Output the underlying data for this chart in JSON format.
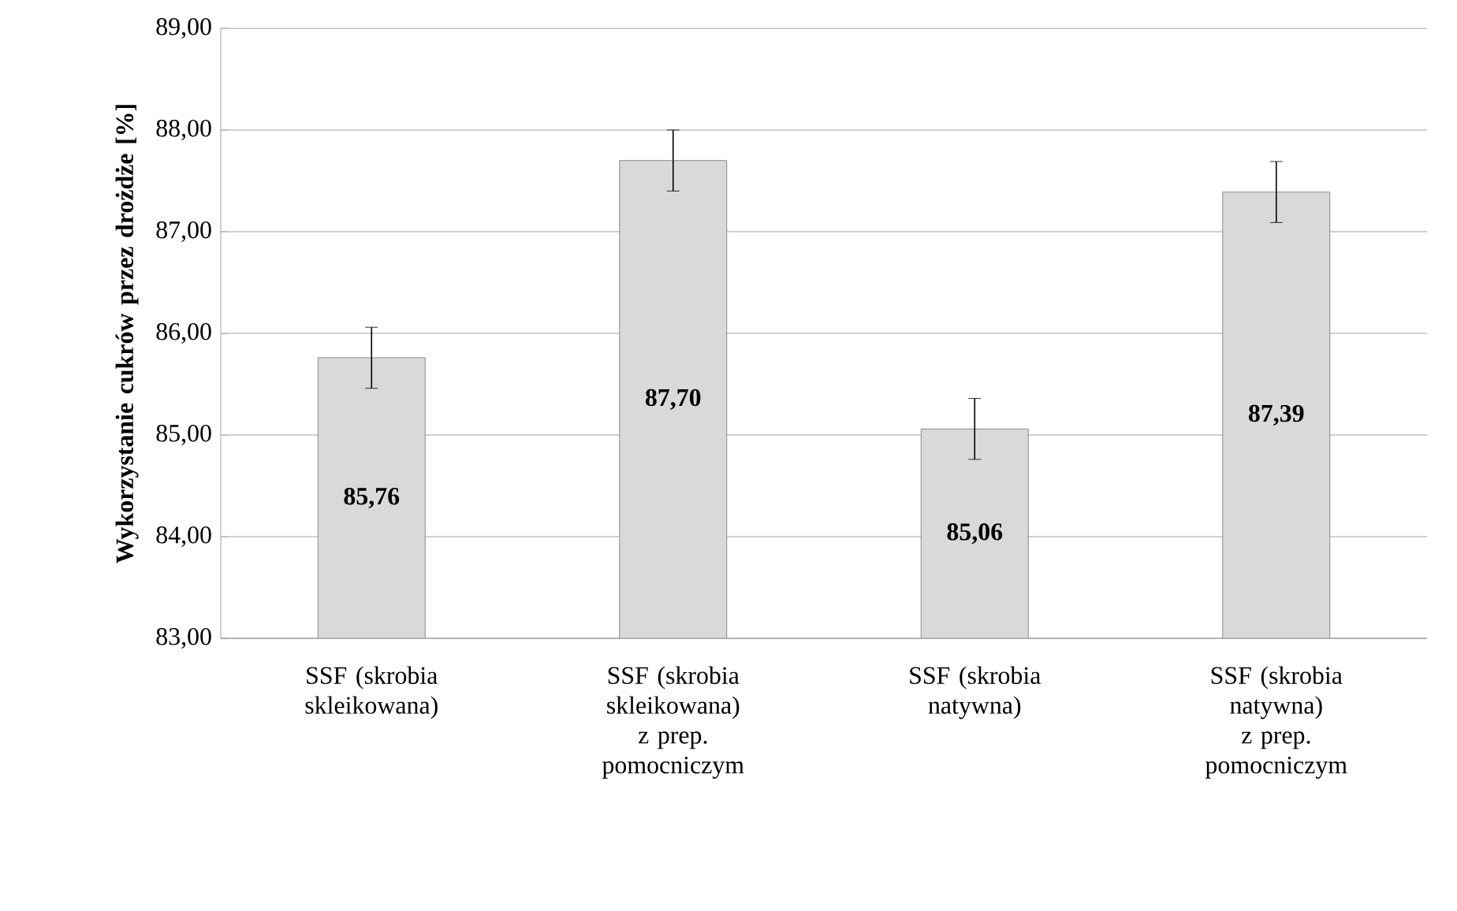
{
  "chart_data": {
    "type": "bar",
    "ylabel": "Wykorzystanie cukrów przez drożdże [%]",
    "categories": [
      "SSF (skrobia skleikowana)",
      "SSF (skrobia skleikowana) z prep. pomocniczym",
      "SSF (skrobia natywna)",
      "SSF (skrobia natywna) z prep. pomocniczym"
    ],
    "values": [
      85.76,
      87.7,
      85.06,
      87.39
    ],
    "errors": [
      0.3,
      0.3,
      0.3,
      0.3
    ],
    "value_labels": [
      "85,76",
      "87,70",
      "85,06",
      "87,39"
    ],
    "color": "#d9d9d9",
    "ylim": [
      83,
      89
    ],
    "yticks": [
      {
        "value": 83,
        "label": "83,00"
      },
      {
        "value": 84,
        "label": "84,00"
      },
      {
        "value": 85,
        "label": "85,00"
      },
      {
        "value": 86,
        "label": "86,00"
      },
      {
        "value": 87,
        "label": "87,00"
      },
      {
        "value": 88,
        "label": "88,00"
      },
      {
        "value": 89,
        "label": "89,00"
      }
    ],
    "grid": "y"
  }
}
